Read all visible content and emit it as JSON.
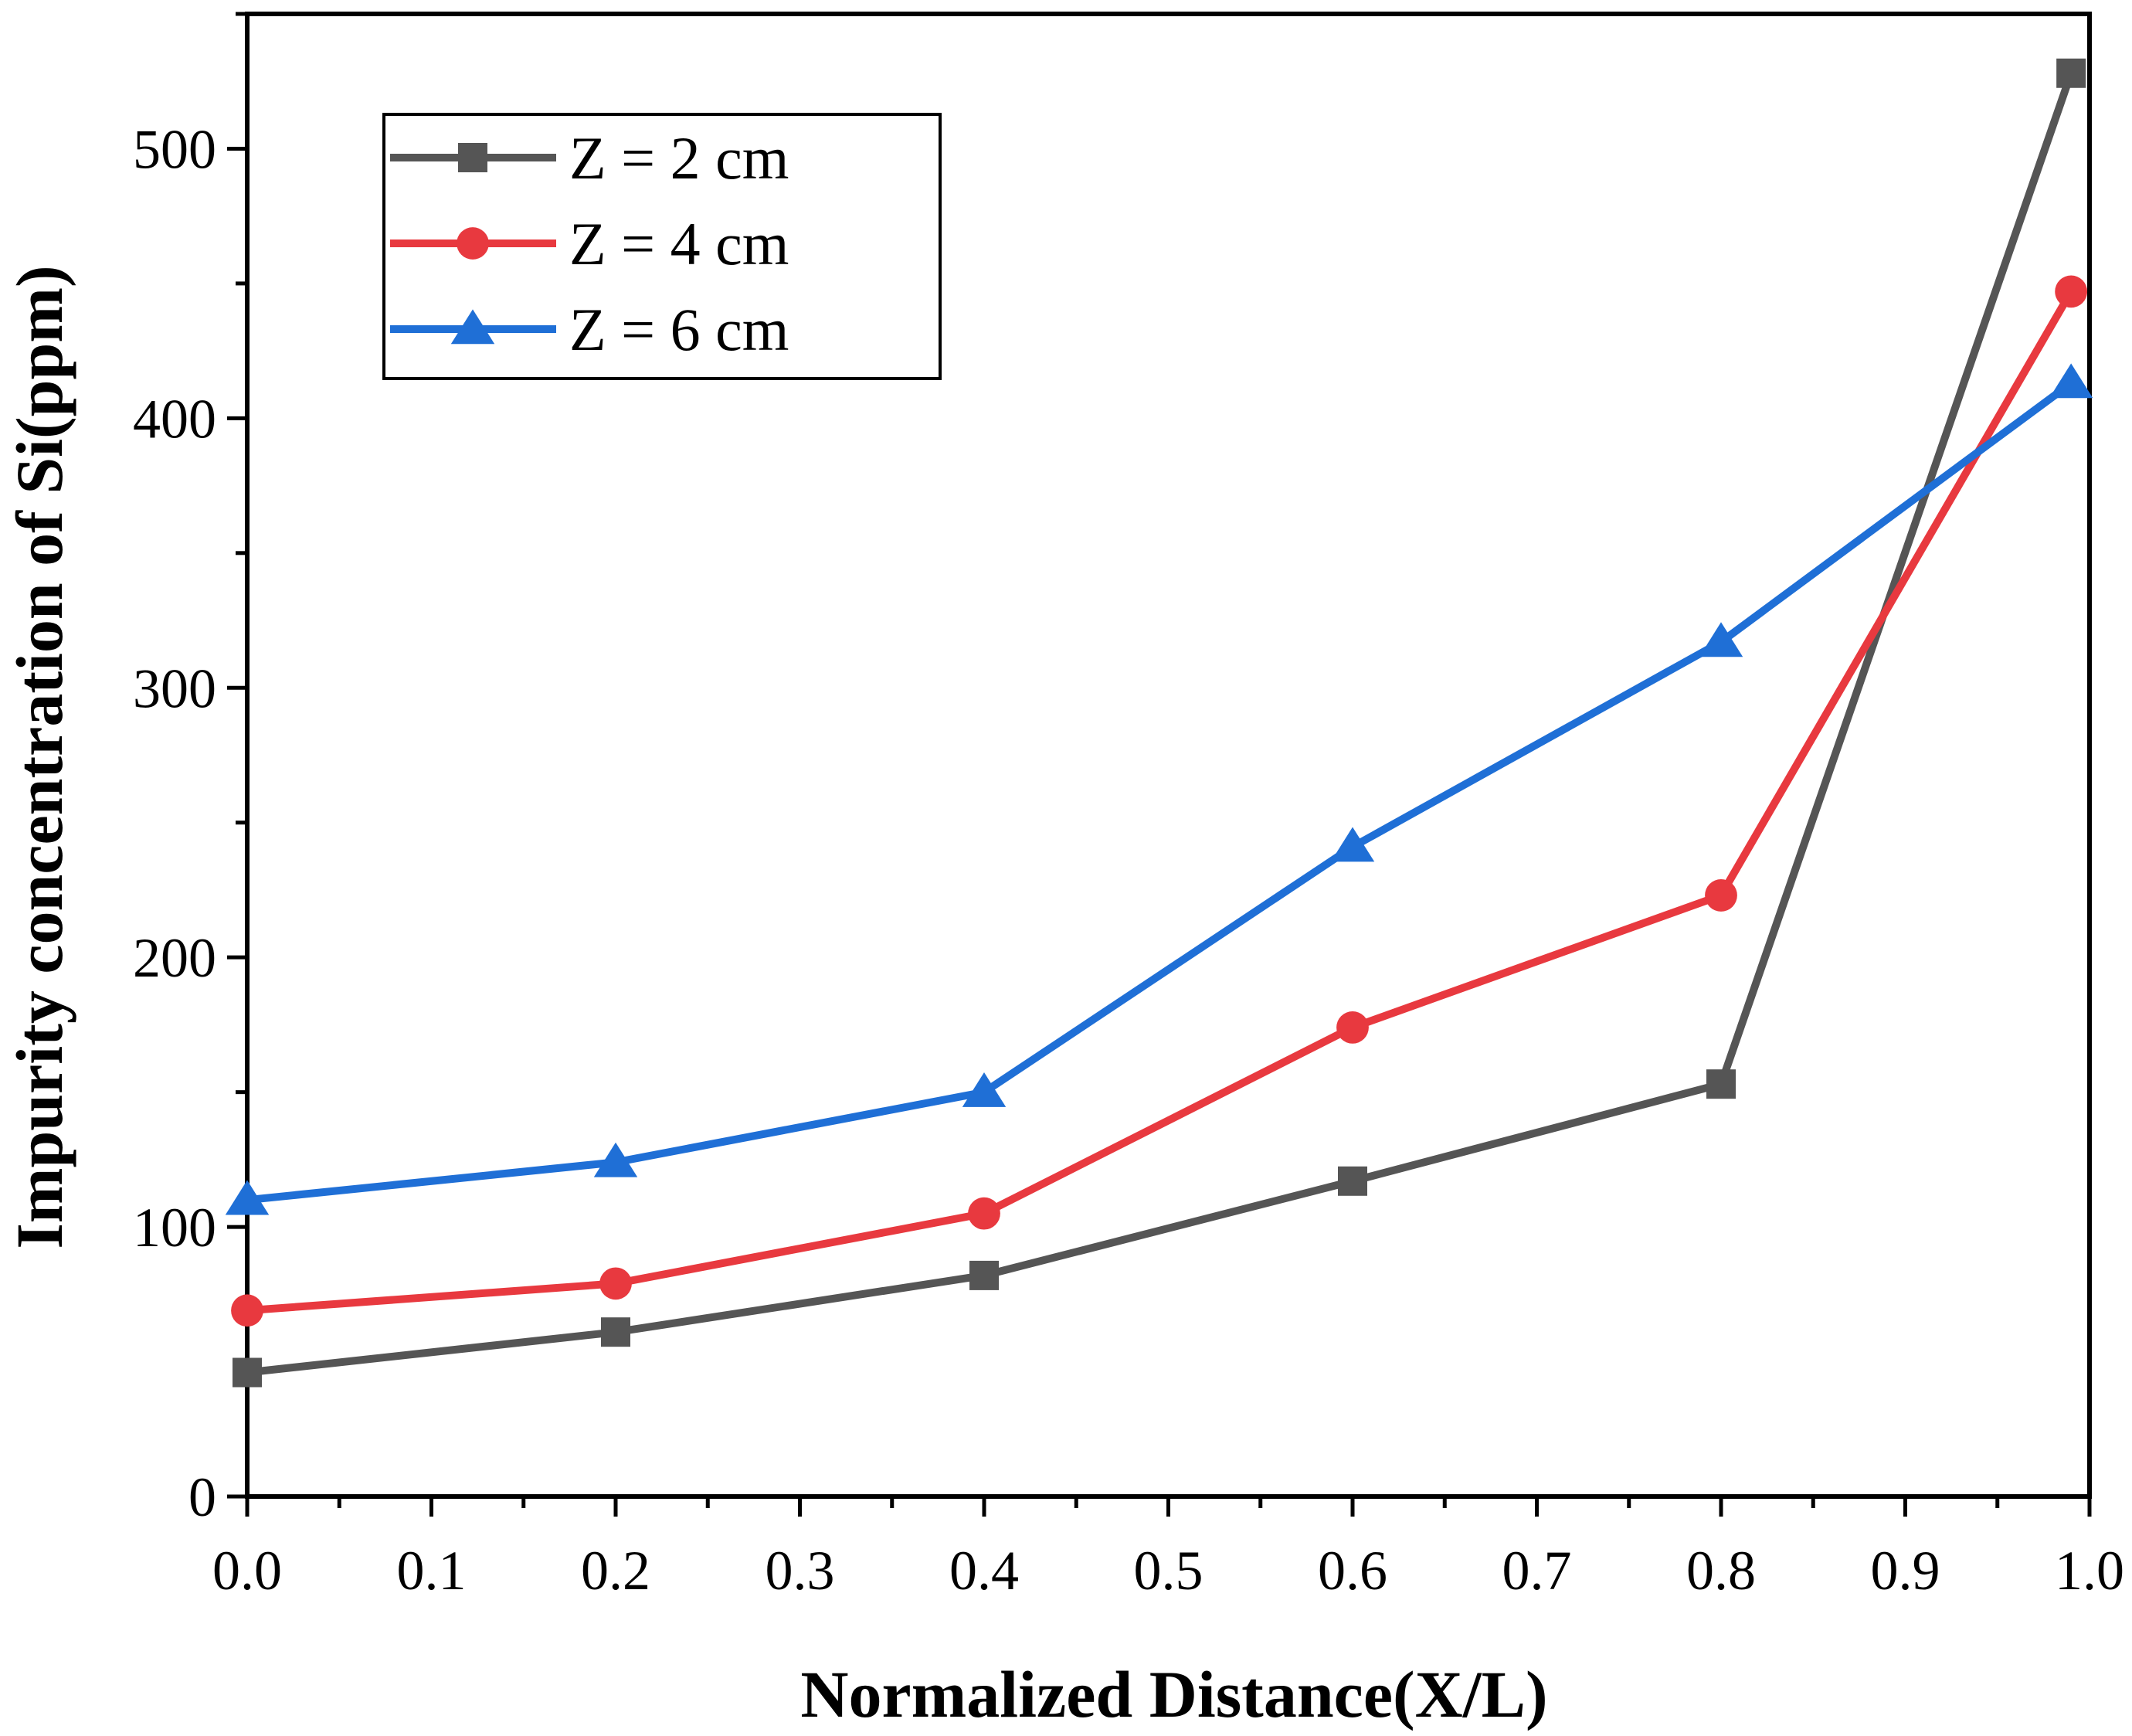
{
  "chart_data": {
    "type": "line",
    "title": "",
    "xlabel": "Normalized Distance(X/L)",
    "ylabel": "Impurity concentration of Si(ppm)",
    "xlim": [
      0.0,
      1.0
    ],
    "ylim": [
      0,
      550
    ],
    "x_ticks": [
      "0.0",
      "0.1",
      "0.2",
      "0.3",
      "0.4",
      "0.5",
      "0.6",
      "0.7",
      "0.8",
      "0.9",
      "1.0"
    ],
    "y_ticks": [
      "0",
      "100",
      "200",
      "300",
      "400",
      "500"
    ],
    "grid": false,
    "legend_position": "top-left",
    "series": [
      {
        "name": "Z = 2 cm",
        "color": "#555555",
        "marker": "square",
        "x": [
          0.0,
          0.2,
          0.4,
          0.6,
          0.8,
          0.99
        ],
        "values": [
          46,
          61,
          82,
          117,
          153,
          528
        ]
      },
      {
        "name": "Z = 4 cm",
        "color": "#e8393f",
        "marker": "circle",
        "x": [
          0.0,
          0.2,
          0.4,
          0.6,
          0.8,
          0.99
        ],
        "values": [
          69,
          79,
          105,
          174,
          223,
          447
        ]
      },
      {
        "name": "Z = 6 cm",
        "color": "#1f6fd6",
        "marker": "triangle",
        "x": [
          0.0,
          0.2,
          0.4,
          0.6,
          0.8,
          0.99
        ],
        "values": [
          110,
          124,
          150,
          241,
          317,
          413
        ]
      }
    ]
  }
}
